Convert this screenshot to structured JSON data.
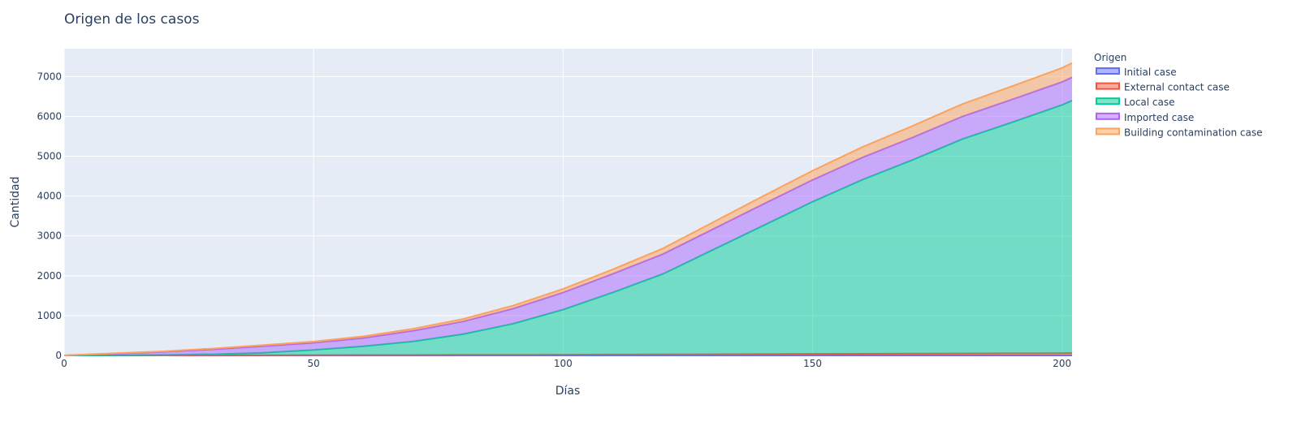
{
  "chart_data": {
    "type": "area",
    "title": "Origen de los casos",
    "xlabel": "Días",
    "ylabel": "Cantidad",
    "xlim": [
      0,
      202
    ],
    "ylim": [
      0,
      7700
    ],
    "xticks": [
      0,
      50,
      100,
      150,
      200
    ],
    "yticks": [
      0,
      1000,
      2000,
      3000,
      4000,
      5000,
      6000,
      7000
    ],
    "grid": true,
    "stacked": true,
    "legend": {
      "title": "Origen",
      "position": "right"
    },
    "x": [
      0,
      10,
      20,
      30,
      40,
      50,
      60,
      70,
      80,
      90,
      100,
      110,
      120,
      130,
      140,
      150,
      160,
      170,
      180,
      190,
      200,
      202
    ],
    "series": [
      {
        "name": "Initial case",
        "color": "#636efa",
        "values": [
          1,
          1,
          1,
          1,
          1,
          1,
          1,
          1,
          1,
          1,
          1,
          1,
          1,
          1,
          1,
          1,
          1,
          1,
          1,
          1,
          1,
          1
        ]
      },
      {
        "name": "External contact case",
        "color": "#ef553b",
        "values": [
          0,
          1,
          2,
          3,
          4,
          6,
          8,
          10,
          13,
          15,
          18,
          21,
          24,
          28,
          32,
          36,
          40,
          44,
          48,
          52,
          56,
          57
        ]
      },
      {
        "name": "Local case",
        "color": "#00cc96",
        "values": [
          0,
          3,
          10,
          25,
          60,
          130,
          220,
          340,
          520,
          780,
          1130,
          1560,
          2020,
          2620,
          3220,
          3820,
          4370,
          4860,
          5380,
          5800,
          6230,
          6340
        ]
      },
      {
        "name": "Imported case",
        "color": "#ab63fa",
        "values": [
          0,
          40,
          75,
          125,
          170,
          180,
          210,
          270,
          320,
          380,
          430,
          470,
          500,
          520,
          540,
          550,
          560,
          565,
          570,
          575,
          580,
          585
        ]
      },
      {
        "name": "Building contamination case",
        "color": "#ffa15a",
        "values": [
          0,
          8,
          15,
          20,
          25,
          30,
          40,
          50,
          60,
          75,
          90,
          110,
          140,
          170,
          200,
          230,
          260,
          290,
          310,
          330,
          350,
          355
        ]
      }
    ]
  }
}
